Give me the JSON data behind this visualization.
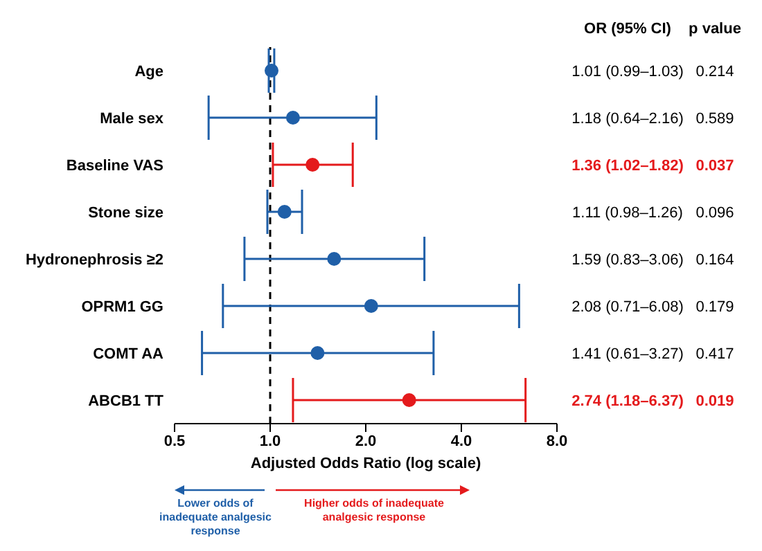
{
  "chart_data": {
    "type": "scatter",
    "orientation": "horizontal",
    "marker": "circle",
    "log": "x",
    "categories": [
      "Age",
      "Male sex",
      "Baseline VAS",
      "Stone size",
      "Hydronephrosis ≥2",
      "OPRM1 GG",
      "COMT  AA",
      "ABCB1 TT"
    ],
    "values": [
      1.01,
      1.18,
      1.36,
      1.11,
      1.59,
      2.08,
      1.41,
      2.74
    ],
    "errors": [
      [
        0.99,
        1.03
      ],
      [
        0.64,
        2.16
      ],
      [
        1.02,
        1.82
      ],
      [
        0.98,
        1.26
      ],
      [
        0.83,
        3.06
      ],
      [
        0.71,
        6.08
      ],
      [
        0.61,
        3.27
      ],
      [
        1.18,
        6.37
      ]
    ],
    "colors": [
      "#1f5fa8",
      "#1f5fa8",
      "#e41a1c",
      "#1f5fa8",
      "#1f5fa8",
      "#1f5fa8",
      "#1f5fa8",
      "#e41a1c"
    ],
    "value_labels": [
      "1.01 (0.99–1.03)",
      "1.18 (0.64–2.16)",
      "1.36 (1.02–1.82)",
      "1.11 (0.98–1.26)",
      "1.59 (0.83–3.06)",
      "2.08 (0.71–6.08)",
      "1.41 (0.61–3.27)",
      "2.74 (1.18–6.37)"
    ],
    "xlim": [
      0.5,
      8
    ],
    "xticks": [
      0.5,
      {
        "value": 1,
        "label": "1.0"
      },
      {
        "value": 2,
        "label": "2.0"
      },
      {
        "value": 4,
        "label": "4.0"
      },
      {
        "value": 8,
        "label": "8.0"
      }
    ],
    "xlabel": "Adjusted Odds Ratio (log scale)",
    "ref_lines": [
      {
        "axis": "x",
        "value": 1,
        "color": "#000000",
        "line_style": "dashed"
      }
    ],
    "annotations": [
      "OR (95% CI)",
      "p value",
      "Lower odds of inadequate analgesic response",
      "Higher odds of inadequate analgesic response",
      "0.214",
      "0.589",
      "0.037",
      "0.096",
      "0.164",
      "0.179",
      "0.417",
      "0.019"
    ]
  }
}
